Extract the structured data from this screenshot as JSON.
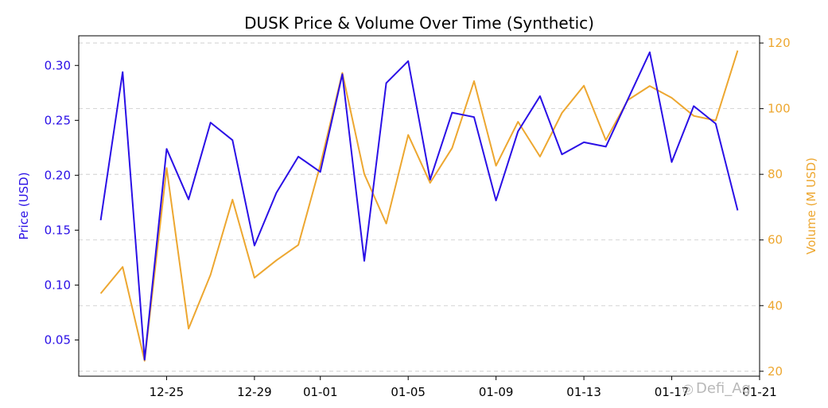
{
  "chart_data": {
    "type": "line",
    "title": "DUSK Price & Volume Over Time (Synthetic)",
    "xlabel": "",
    "x_tick_labels": [
      "12-25",
      "12-29",
      "01-01",
      "01-05",
      "01-09",
      "01-13",
      "01-17",
      "01-21"
    ],
    "x_tick_dates": [
      "2023-12-25",
      "2023-12-29",
      "2024-01-01",
      "2024-01-05",
      "2024-01-09",
      "2024-01-13",
      "2024-01-17",
      "2024-01-21"
    ],
    "x": [
      "2023-12-22",
      "2023-12-23",
      "2023-12-24",
      "2023-12-25",
      "2023-12-26",
      "2023-12-27",
      "2023-12-28",
      "2023-12-29",
      "2023-12-30",
      "2023-12-31",
      "2024-01-01",
      "2024-01-02",
      "2024-01-03",
      "2024-01-04",
      "2024-01-05",
      "2024-01-06",
      "2024-01-07",
      "2024-01-08",
      "2024-01-09",
      "2024-01-10",
      "2024-01-11",
      "2024-01-12",
      "2024-01-13",
      "2024-01-14",
      "2024-01-15",
      "2024-01-16",
      "2024-01-17",
      "2024-01-18",
      "2024-01-19",
      "2024-01-20"
    ],
    "xlim": [
      "2023-12-21",
      "2024-01-21"
    ],
    "series": [
      {
        "name": "Price (USD)",
        "axis": "left",
        "color": "#2a0fe6",
        "values": [
          0.159,
          0.294,
          0.032,
          0.224,
          0.178,
          0.248,
          0.232,
          0.136,
          0.184,
          0.217,
          0.203,
          0.292,
          0.122,
          0.284,
          0.304,
          0.196,
          0.257,
          0.253,
          0.177,
          0.24,
          0.272,
          0.219,
          0.23,
          0.226,
          0.269,
          0.312,
          0.212,
          0.263,
          0.247,
          0.168
        ]
      },
      {
        "name": "Volume (M USD)",
        "axis": "right",
        "color": "#eda730",
        "values": [
          43.7,
          51.8,
          23.2,
          81.9,
          33.0,
          49.4,
          72.3,
          48.5,
          53.8,
          58.5,
          82.8,
          110.9,
          80.1,
          65.0,
          92.0,
          77.4,
          88.0,
          108.4,
          82.6,
          96.0,
          85.4,
          98.7,
          107.0,
          90.4,
          102.6,
          106.9,
          103.3,
          97.8,
          96.4,
          117.7
        ]
      }
    ],
    "y_left": {
      "label": "Price (USD)",
      "ylim": [
        0.017,
        0.327
      ],
      "ticks": [
        0.05,
        0.1,
        0.15,
        0.2,
        0.25,
        0.3
      ],
      "tick_labels": [
        "0.05",
        "0.10",
        "0.15",
        "0.20",
        "0.25",
        "0.30"
      ],
      "color": "#2a0fe6"
    },
    "y_right": {
      "label": "Volume (M USD)",
      "ylim": [
        18.5,
        122.2
      ],
      "ticks": [
        20,
        40,
        60,
        80,
        100,
        120
      ],
      "tick_labels": [
        "20",
        "40",
        "60",
        "80",
        "100",
        "120"
      ],
      "color": "#eda730"
    },
    "grid": "horizontal dashed"
  },
  "watermark": {
    "text": "Defi_Ag",
    "icon": "wechat-icon"
  }
}
